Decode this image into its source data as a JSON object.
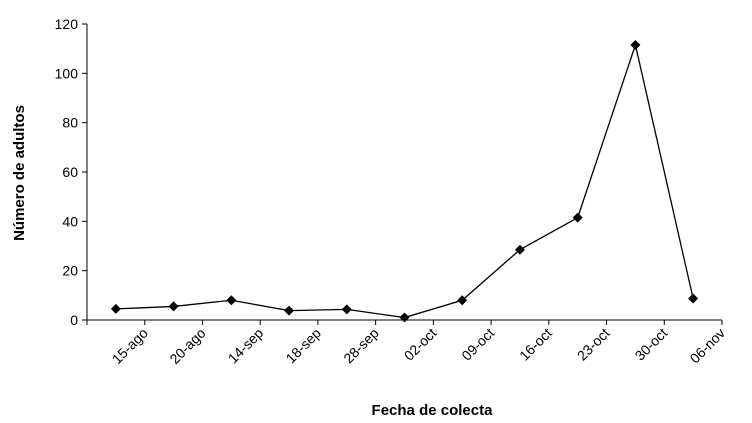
{
  "chart_data": {
    "type": "line",
    "title": "",
    "xlabel": "Fecha de colecta",
    "ylabel": "Número de adultos",
    "categories": [
      "15-ago",
      "20-ago",
      "14-sep",
      "18-sep",
      "28-sep",
      "02-oct",
      "09-oct",
      "16-oct",
      "23-oct",
      "30-oct",
      "06-nov"
    ],
    "series": [
      {
        "values": [
          4.5,
          5.5,
          8,
          3.8,
          4.3,
          1,
          8,
          28.5,
          41.5,
          111.5,
          8.7
        ],
        "color": "#000000",
        "marker": "diamond"
      }
    ],
    "ylim": [
      0,
      120
    ],
    "yticks": [
      0,
      20,
      40,
      60,
      80,
      100,
      120
    ],
    "grid": false,
    "legend": "none"
  }
}
